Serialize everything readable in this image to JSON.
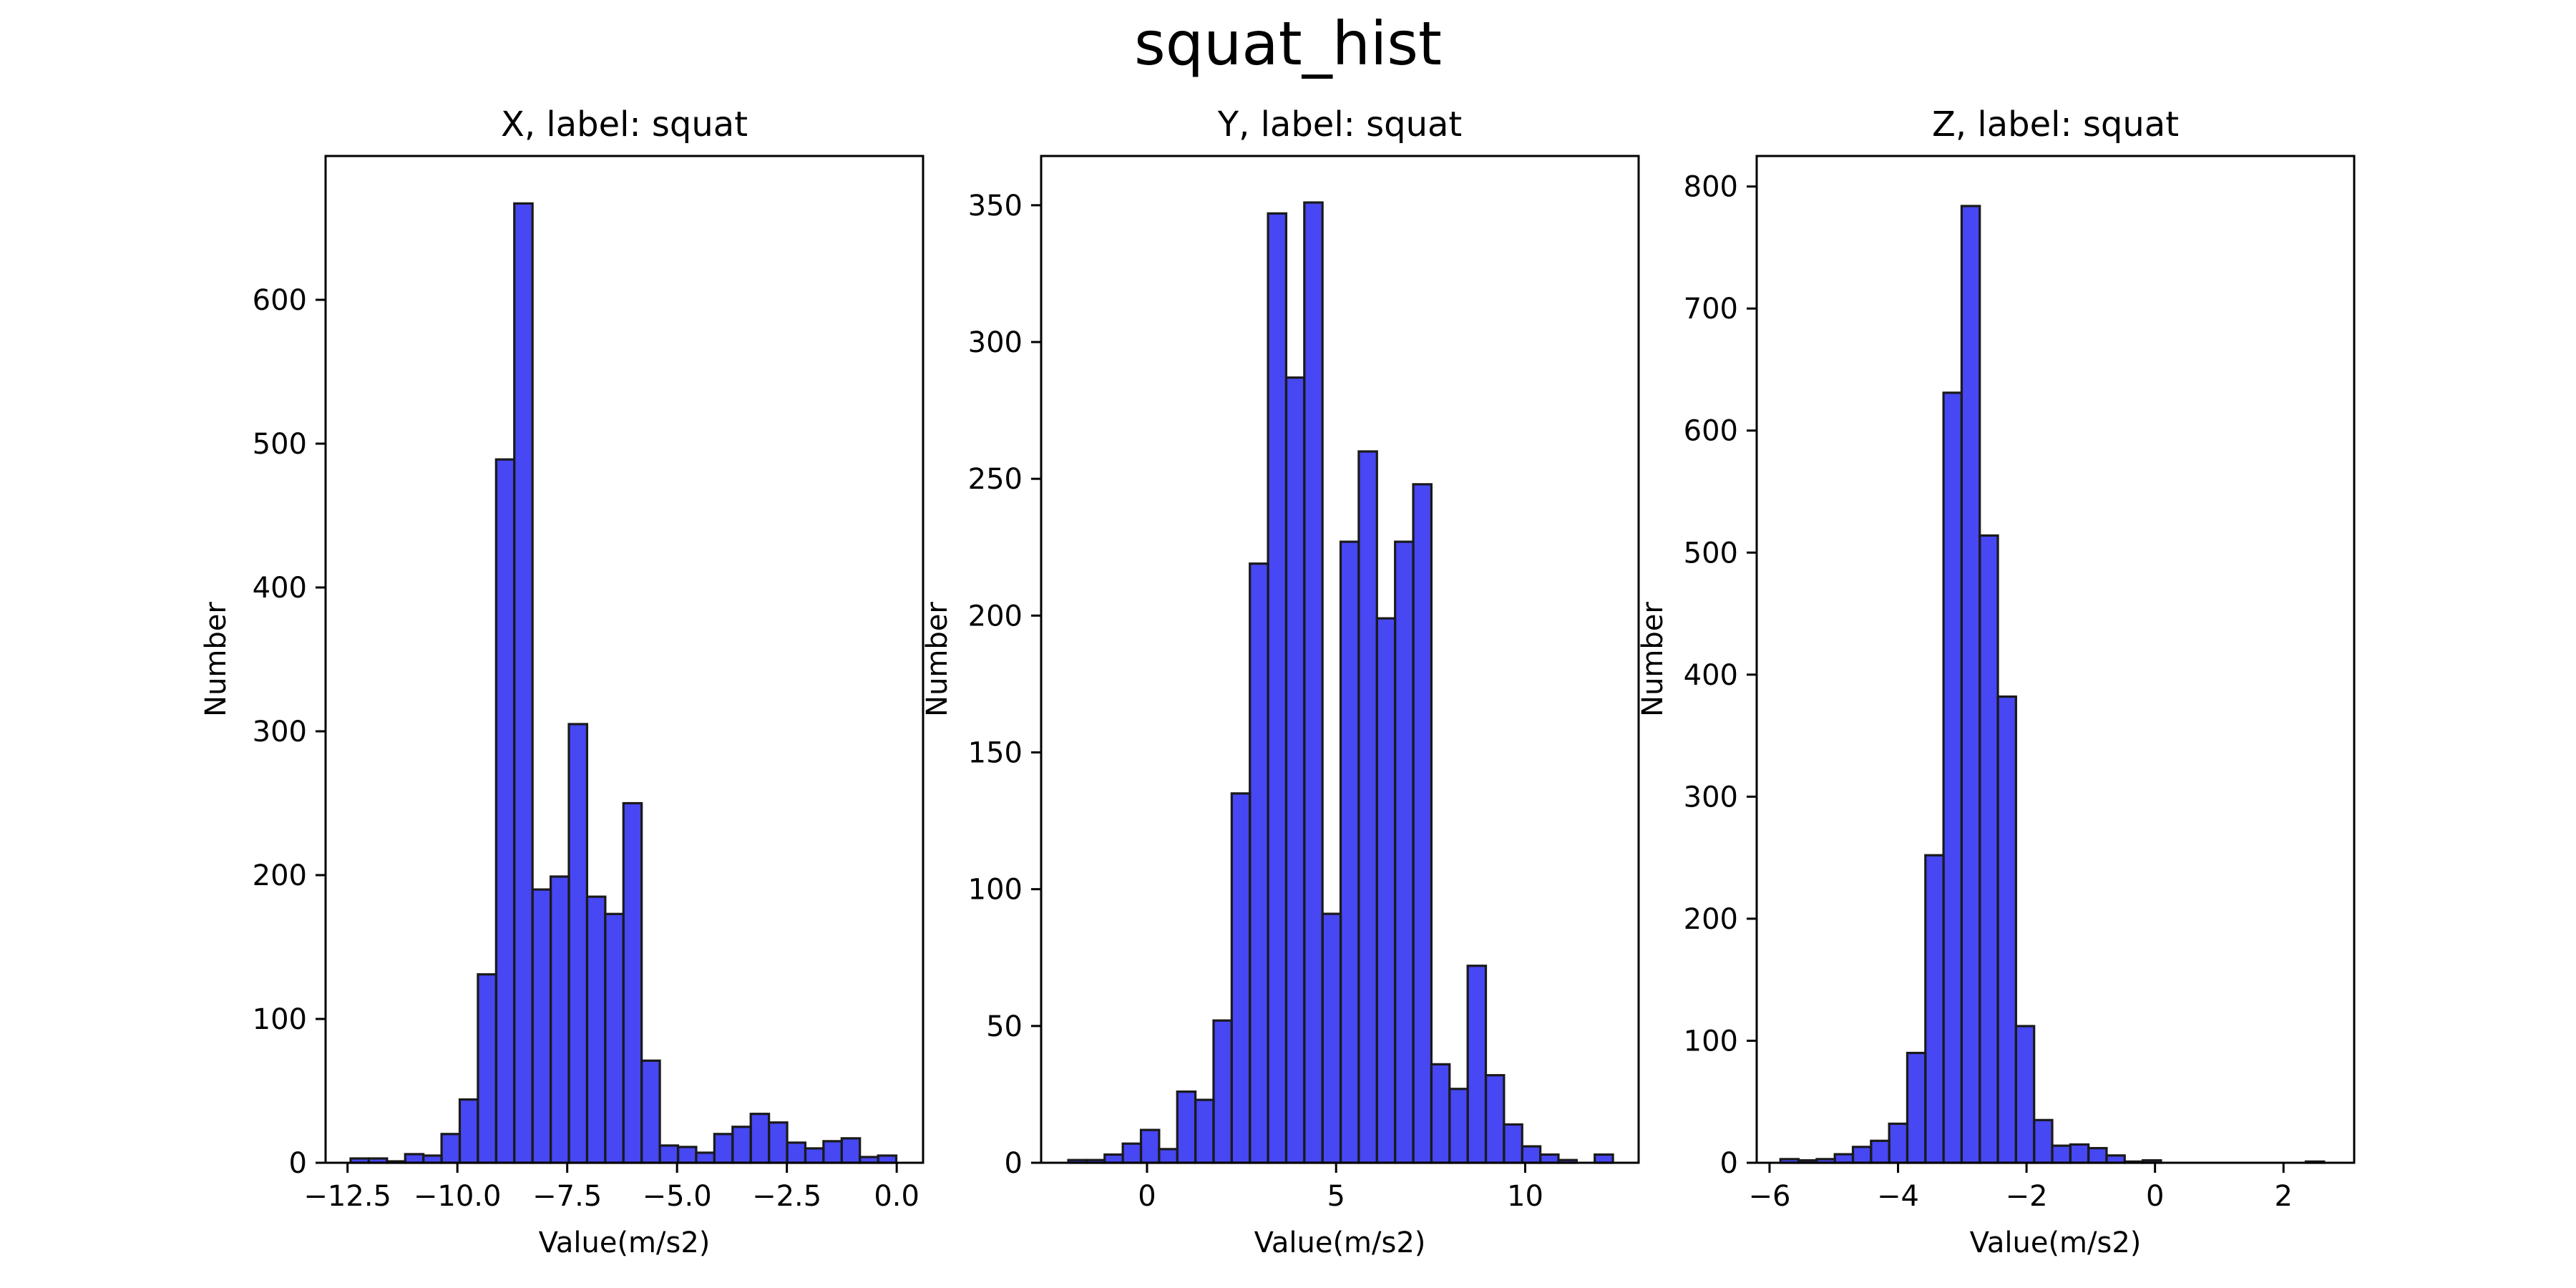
{
  "figure": {
    "title": "squat_hist"
  },
  "style": {
    "bar_fill": "#0000ee",
    "bar_opacity": 0.72,
    "bar_edge": "#1a1a1a",
    "axis_color": "#000000",
    "background": "#ffffff"
  },
  "chart_data": [
    {
      "type": "bar",
      "title": "X, label: squat",
      "xlabel": "Value(m/s2)",
      "ylabel": "Number",
      "xlim": [
        -13.0,
        0.6
      ],
      "ylim": [
        0,
        700
      ],
      "xticks": [
        -12.5,
        -10.0,
        -7.5,
        -5.0,
        -2.5,
        0.0
      ],
      "xtick_labels": [
        "−12.5",
        "−10.0",
        "−7.5",
        "−5.0",
        "−2.5",
        "0.0"
      ],
      "yticks": [
        0,
        100,
        200,
        300,
        400,
        500,
        600
      ],
      "ytick_labels": [
        "0",
        "100",
        "200",
        "300",
        "400",
        "500",
        "600"
      ],
      "grid": false,
      "bin_start": -12.43,
      "bin_width": 0.414,
      "values": [
        3,
        3,
        1,
        6,
        5,
        20,
        44,
        131,
        489,
        667,
        190,
        199,
        305,
        185,
        173,
        250,
        71,
        12,
        11,
        7,
        20,
        25,
        34,
        28,
        14,
        10,
        15,
        17,
        4,
        5
      ]
    },
    {
      "type": "bar",
      "title": "Y, label: squat",
      "xlabel": "Value(m/s2)",
      "ylabel": "Number",
      "xlim": [
        -2.8,
        13.0
      ],
      "ylim": [
        0,
        368
      ],
      "xticks": [
        0,
        5,
        10
      ],
      "xtick_labels": [
        "0",
        "5",
        "10"
      ],
      "yticks": [
        0,
        50,
        100,
        150,
        200,
        250,
        300,
        350
      ],
      "ytick_labels": [
        "0",
        "50",
        "100",
        "150",
        "200",
        "250",
        "300",
        "350"
      ],
      "grid": false,
      "bin_start": -2.08,
      "bin_width": 0.48,
      "values": [
        1,
        1,
        3,
        7,
        12,
        5,
        26,
        23,
        52,
        135,
        219,
        347,
        287,
        351,
        91,
        227,
        260,
        199,
        227,
        248,
        36,
        27,
        72,
        32,
        14,
        6,
        3,
        1,
        0,
        3
      ]
    },
    {
      "type": "bar",
      "title": "Z, label: squat",
      "xlabel": "Value(m/s2)",
      "ylabel": "Number",
      "xlim": [
        -6.2,
        3.1
      ],
      "ylim": [
        0,
        825
      ],
      "xticks": [
        -6,
        -4,
        -2,
        0,
        2
      ],
      "xtick_labels": [
        "−6",
        "−4",
        "−2",
        "0",
        "2"
      ],
      "yticks": [
        0,
        100,
        200,
        300,
        400,
        500,
        600,
        700,
        800
      ],
      "ytick_labels": [
        "0",
        "100",
        "200",
        "300",
        "400",
        "500",
        "600",
        "700",
        "800"
      ],
      "grid": false,
      "bin_start": -5.83,
      "bin_width": 0.282,
      "values": [
        3,
        2,
        3,
        7,
        13,
        18,
        32,
        90,
        252,
        631,
        784,
        514,
        382,
        112,
        35,
        14,
        15,
        12,
        6,
        1,
        2,
        0,
        0,
        0,
        0,
        0,
        0,
        0,
        0,
        1
      ]
    }
  ]
}
